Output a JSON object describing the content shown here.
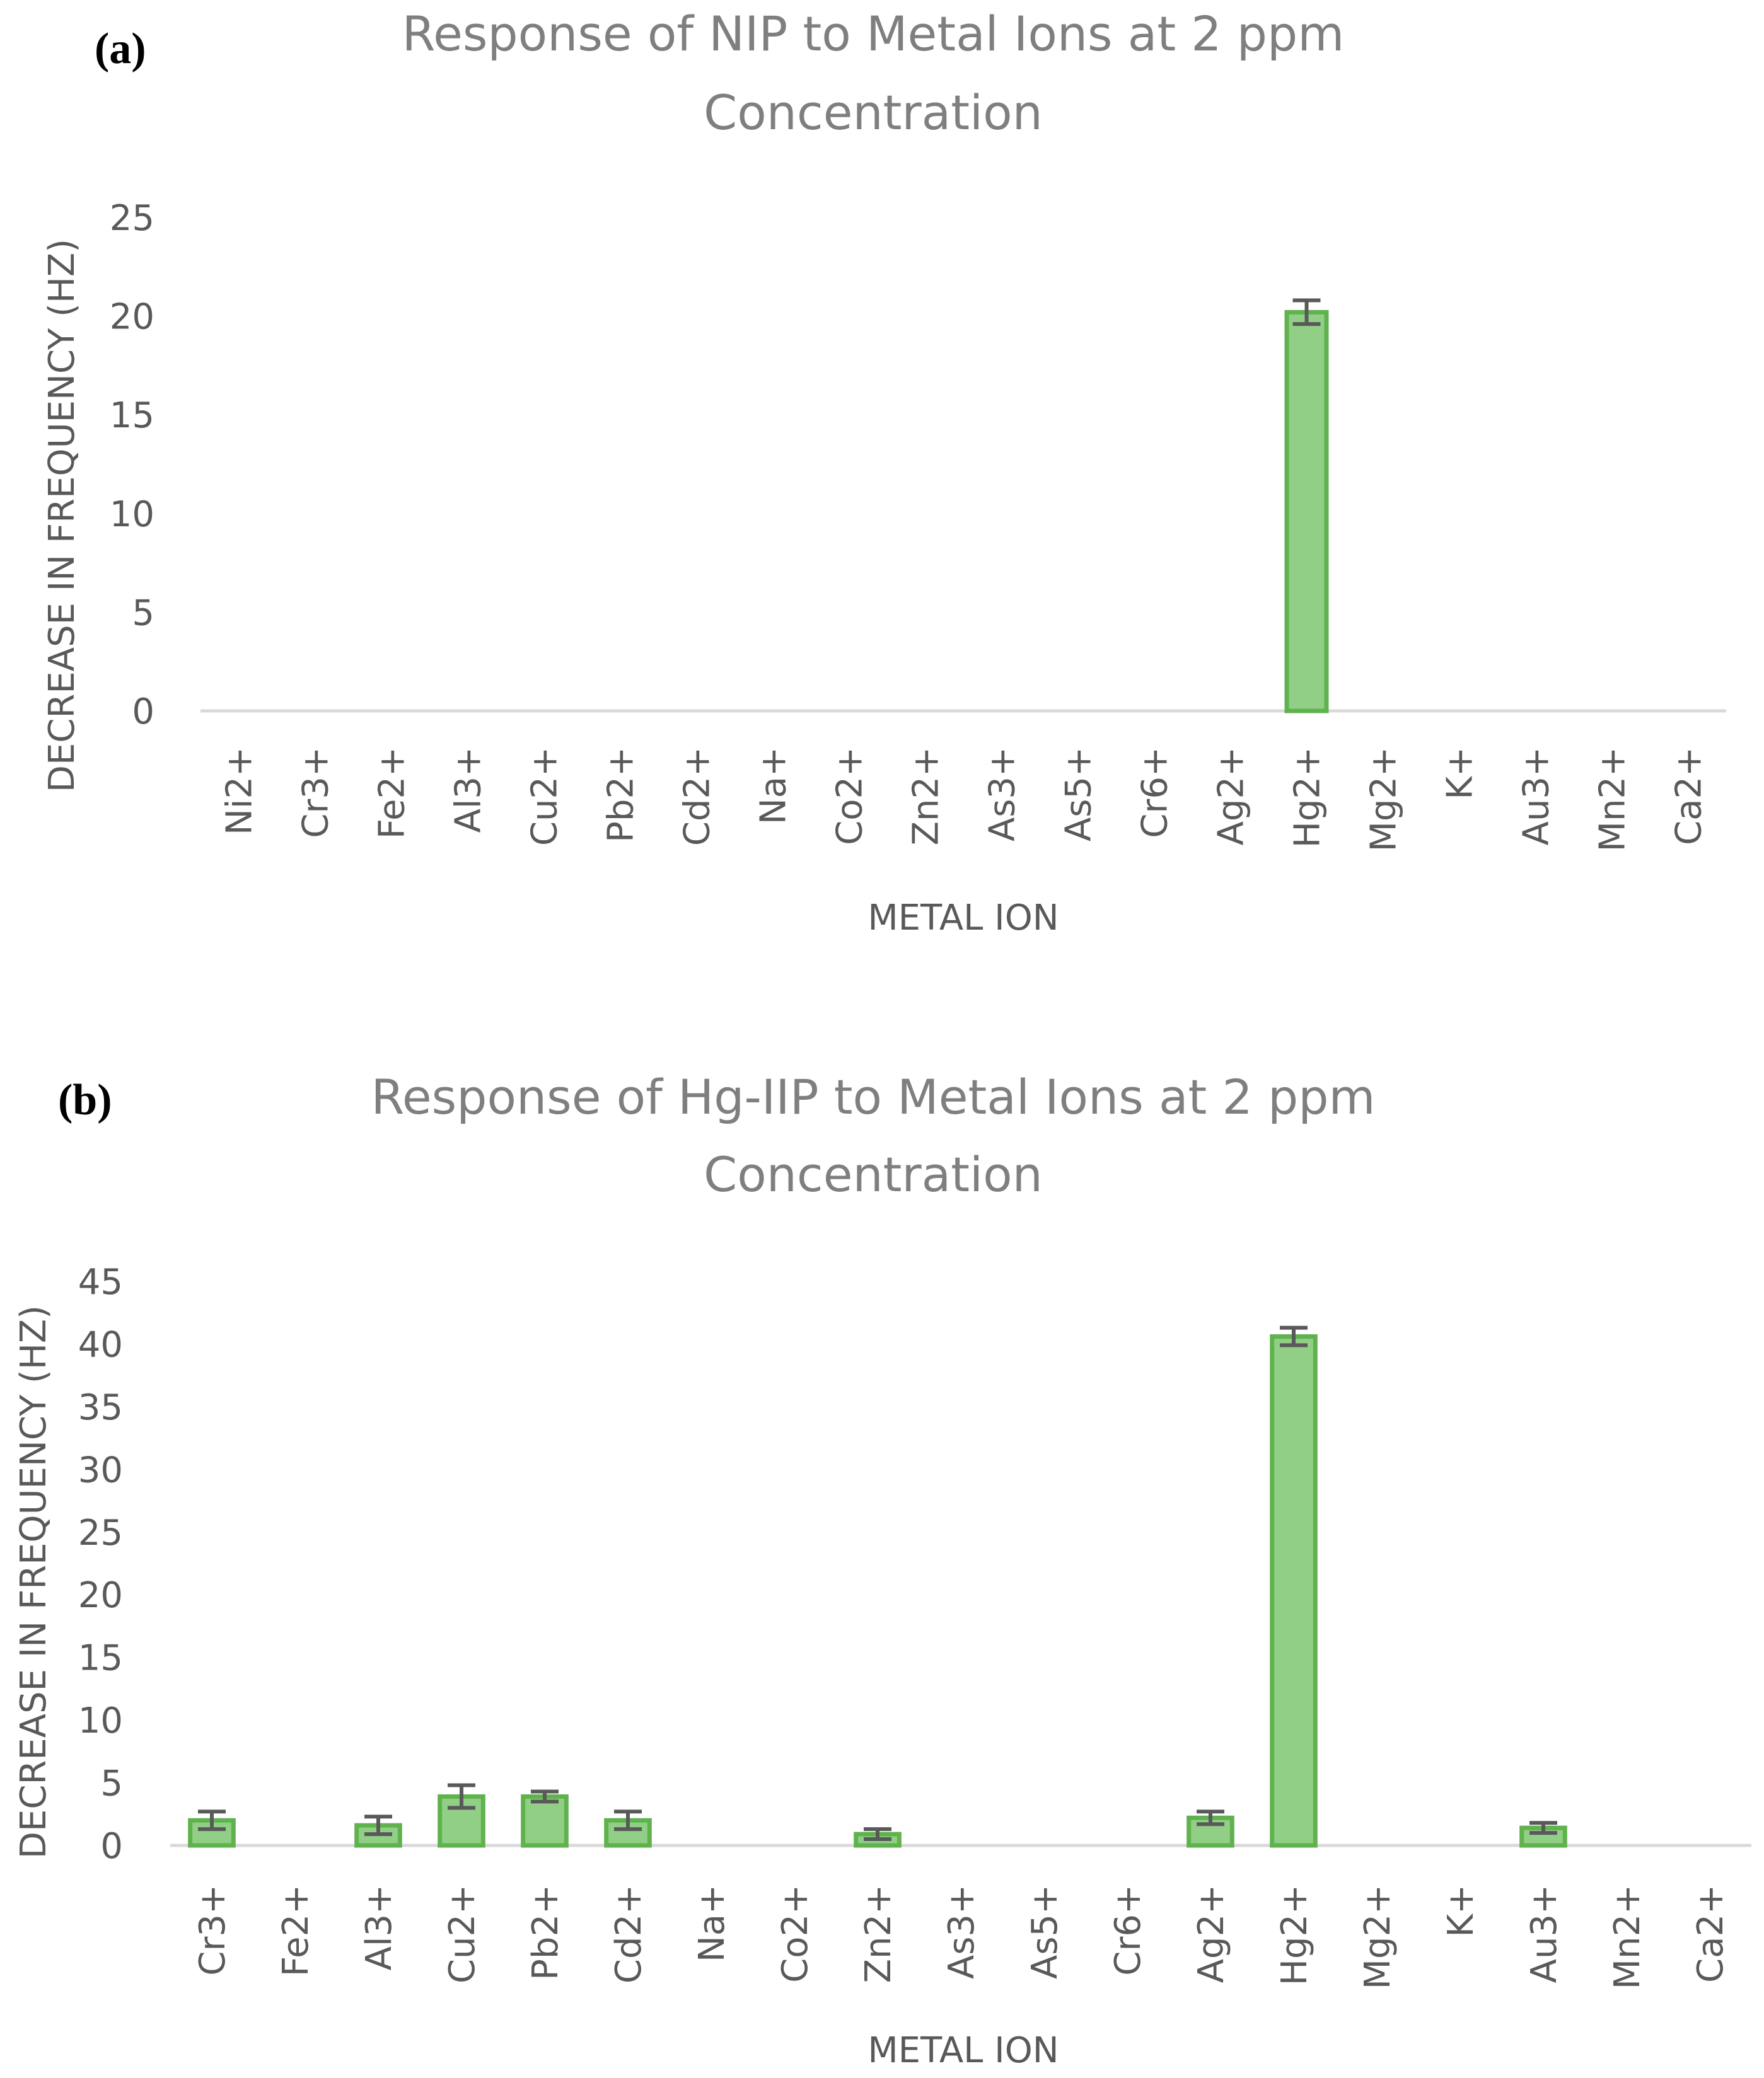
{
  "chart_data": [
    {
      "type": "bar",
      "panel_label": "(a)",
      "title_line1": "Response of NIP to Metal Ions at 2 ppm",
      "title_line2": "Concentration",
      "xlabel": "METAL ION",
      "ylabel": "DECREASE IN FREQUENCY (HZ)",
      "ylim": [
        0,
        25
      ],
      "yticks": [
        "0",
        "5",
        "10",
        "15",
        "20",
        "25"
      ],
      "categories": [
        "Ni2+",
        "Cr3+",
        "Fe2+",
        "Al3+",
        "Cu2+",
        "Pb2+",
        "Cd2+",
        "Na+",
        "Co2+",
        "Zn2+",
        "As3+",
        "As5+",
        "Cr6+",
        "Ag2+",
        "Hg2+",
        "Mg2+",
        "K+",
        "Au3+",
        "Mn2+",
        "Ca2+"
      ],
      "values": [
        0,
        0,
        0,
        0,
        0,
        0,
        0,
        0,
        0,
        0,
        0,
        0,
        0,
        0,
        20.2,
        0,
        0,
        0,
        0,
        0
      ],
      "errors": [
        0,
        0,
        0,
        0,
        0,
        0,
        0,
        0,
        0,
        0,
        0,
        0,
        0,
        0,
        0.6,
        0,
        0,
        0,
        0,
        0
      ],
      "grid": false,
      "legend": "none",
      "bar_color": "#92cf86",
      "bar_edge_color": "#5fb24d"
    },
    {
      "type": "bar",
      "panel_label": "(b)",
      "title_line1": "Response of Hg-IIP to Metal Ions at 2 ppm",
      "title_line2": "Concentration",
      "xlabel": "METAL ION",
      "ylabel": "DECREASE IN FREQUENCY (HZ)",
      "ylim": [
        0,
        45
      ],
      "yticks": [
        "0",
        "5",
        "10",
        "15",
        "20",
        "25",
        "30",
        "35",
        "40",
        "45"
      ],
      "categories": [
        "Cr3+",
        "Fe2+",
        "Al3+",
        "Cu2+",
        "Pb2+",
        "Cd2+",
        "Na+",
        "Co2+",
        "Zn2+",
        "As3+",
        "As5+",
        "Cr6+",
        "Ag2+",
        "Hg2+",
        "Mg2+",
        "K+",
        "Au3+",
        "Mn2+",
        "Ca2+"
      ],
      "values": [
        2.0,
        0,
        1.6,
        3.9,
        3.9,
        2.0,
        0,
        0,
        0.9,
        0,
        0,
        0,
        2.2,
        40.6,
        0,
        0,
        1.4,
        0,
        0
      ],
      "errors": [
        0.7,
        0,
        0.7,
        0.9,
        0.4,
        0.7,
        0,
        0,
        0.4,
        0,
        0,
        0,
        0.5,
        0.7,
        0,
        0,
        0.4,
        0,
        0
      ],
      "grid": false,
      "legend": "none",
      "bar_color": "#92cf86",
      "bar_edge_color": "#5fb24d"
    }
  ]
}
